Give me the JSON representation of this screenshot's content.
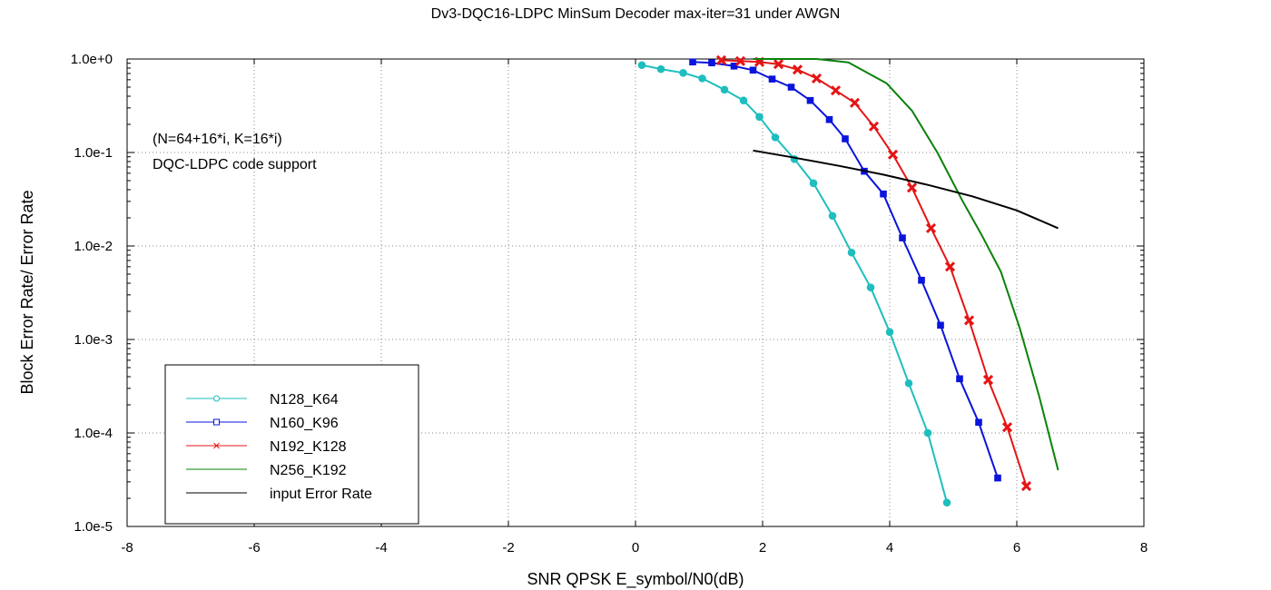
{
  "chart_data": {
    "type": "line",
    "title": "Dv3-DQC16-LDPC MinSum Decoder max-iter=31 under AWGN",
    "xlabel": "SNR QPSK E_symbol/N0(dB)",
    "ylabel": "Block Error Rate/ Error Rate",
    "xlim": [
      -8,
      8
    ],
    "ylim": [
      1e-05,
      1
    ],
    "yscale": "log",
    "grid": true,
    "legend_position": "bottom-left",
    "x_ticks": [
      "-8",
      "-6",
      "-4",
      "-2",
      "0",
      "2",
      "4",
      "6",
      "8"
    ],
    "y_ticks": [
      "1.0e+0",
      "1.0e-1",
      "1.0e-2",
      "1.0e-3",
      "1.0e-4",
      "1.0e-5"
    ],
    "annotations": [
      "(N=64+16*i, K=16*i)",
      "DQC-LDPC code support"
    ],
    "series": [
      {
        "name": "N128_K64",
        "color": "#1ebebe",
        "marker": "circle",
        "x": [
          0.1,
          0.4,
          0.75,
          1.05,
          1.4,
          1.7,
          1.95,
          2.2,
          2.5,
          2.8,
          3.1,
          3.4,
          3.7,
          4.0,
          4.3,
          4.6,
          4.9
        ],
        "y": [
          0.86,
          0.78,
          0.71,
          0.62,
          0.47,
          0.36,
          0.24,
          0.145,
          0.085,
          0.047,
          0.021,
          0.0085,
          0.0036,
          0.0012,
          0.00034,
          0.0001,
          1.8e-05
        ]
      },
      {
        "name": "N160_K96",
        "color": "#0a14dc",
        "marker": "square",
        "x": [
          0.9,
          1.2,
          1.55,
          1.85,
          2.15,
          2.45,
          2.75,
          3.05,
          3.3,
          3.6,
          3.9,
          4.2,
          4.5,
          4.8,
          5.1,
          5.4,
          5.7
        ],
        "y": [
          0.93,
          0.91,
          0.84,
          0.76,
          0.61,
          0.5,
          0.36,
          0.225,
          0.14,
          0.063,
          0.036,
          0.0122,
          0.0043,
          0.00142,
          0.00038,
          0.00013,
          3.3e-05
        ]
      },
      {
        "name": "N192_K128",
        "color": "#e61414",
        "marker": "x",
        "x": [
          1.35,
          1.65,
          1.95,
          2.25,
          2.55,
          2.85,
          3.15,
          3.45,
          3.75,
          4.05,
          4.35,
          4.65,
          4.95,
          5.25,
          5.55,
          5.85,
          6.15
        ],
        "y": [
          0.97,
          0.95,
          0.93,
          0.88,
          0.77,
          0.62,
          0.46,
          0.34,
          0.19,
          0.095,
          0.042,
          0.0155,
          0.006,
          0.0016,
          0.00037,
          0.000115,
          2.7e-05
        ]
      },
      {
        "name": "N256_K192",
        "color": "#0a820a",
        "marker": "none",
        "x": [
          1.85,
          2.85,
          3.35,
          3.95,
          4.35,
          4.75,
          5.15,
          5.45,
          5.75,
          6.05,
          6.35,
          6.65
        ],
        "y": [
          1.0,
          1.0,
          0.92,
          0.55,
          0.28,
          0.1,
          0.03,
          0.013,
          0.0053,
          0.0013,
          0.00025,
          4e-05
        ]
      },
      {
        "name": "input Error Rate",
        "color": "#000000",
        "marker": "none",
        "x": [
          1.85,
          2.5,
          3.2,
          3.9,
          4.6,
          5.3,
          6.0,
          6.65
        ],
        "y": [
          0.105,
          0.088,
          0.072,
          0.058,
          0.045,
          0.034,
          0.024,
          0.0155
        ]
      }
    ]
  }
}
